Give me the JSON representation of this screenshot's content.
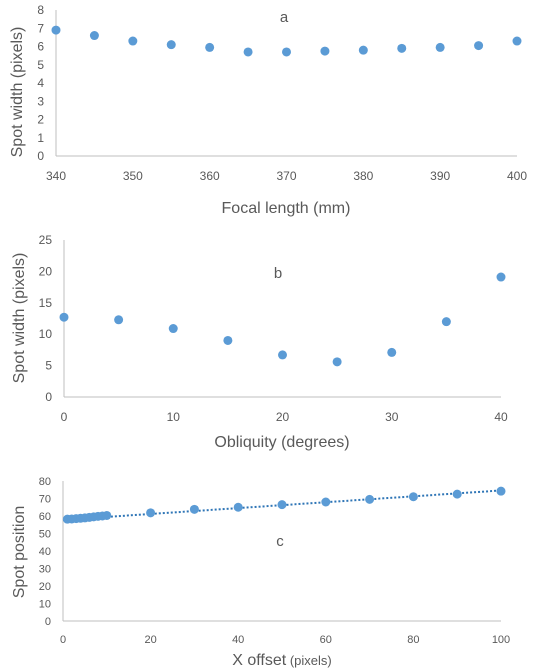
{
  "chart_data": [
    {
      "type": "scatter",
      "panel_label": "a",
      "xlabel": "Focal length (mm)",
      "ylabel": "Spot width (pixels)",
      "xlim": [
        340,
        400
      ],
      "ylim": [
        0,
        8
      ],
      "xticks": [
        340,
        350,
        360,
        370,
        380,
        390,
        400
      ],
      "yticks": [
        0,
        1,
        2,
        3,
        4,
        5,
        6,
        7,
        8
      ],
      "marker_color": "#5b9bd5",
      "points": [
        [
          340,
          6.9
        ],
        [
          345,
          6.6
        ],
        [
          350,
          6.3
        ],
        [
          355,
          6.1
        ],
        [
          360,
          5.95
        ],
        [
          365,
          5.7
        ],
        [
          370,
          5.7
        ],
        [
          375,
          5.75
        ],
        [
          380,
          5.8
        ],
        [
          385,
          5.9
        ],
        [
          390,
          5.95
        ],
        [
          395,
          6.05
        ],
        [
          400,
          6.3
        ]
      ]
    },
    {
      "type": "scatter",
      "panel_label": "b",
      "xlabel": "Obliquity (degrees)",
      "ylabel": "Spot width (pixels)",
      "xlim": [
        0,
        40
      ],
      "ylim": [
        0,
        25
      ],
      "xticks": [
        0,
        10,
        20,
        30,
        40
      ],
      "yticks": [
        0,
        5,
        10,
        15,
        20,
        25
      ],
      "marker_color": "#5b9bd5",
      "points": [
        [
          0,
          12.7
        ],
        [
          5,
          12.3
        ],
        [
          10,
          10.9
        ],
        [
          15,
          9.0
        ],
        [
          20,
          6.7
        ],
        [
          25,
          5.6
        ],
        [
          30,
          7.1
        ],
        [
          35,
          12.0
        ],
        [
          40,
          19.1
        ]
      ]
    },
    {
      "type": "scatter",
      "panel_label": "c",
      "xlabel": "X offset",
      "xlabel_unit": "(pixels)",
      "ylabel": "Spot position",
      "xlim": [
        0,
        100
      ],
      "ylim": [
        0,
        80
      ],
      "xticks": [
        0,
        20,
        40,
        60,
        80,
        100
      ],
      "yticks": [
        0,
        10,
        20,
        30,
        40,
        50,
        60,
        70,
        80
      ],
      "marker_color": "#5b9bd5",
      "trendline": {
        "style": "dotted",
        "color": "#2e75b6",
        "x": [
          0,
          100
        ],
        "y": [
          57.8,
          74.6
        ]
      },
      "points": [
        [
          1,
          58.2
        ],
        [
          2,
          58.3
        ],
        [
          3,
          58.5
        ],
        [
          4,
          58.7
        ],
        [
          5,
          58.9
        ],
        [
          6,
          59.2
        ],
        [
          7,
          59.5
        ],
        [
          8,
          59.8
        ],
        [
          9,
          60.0
        ],
        [
          10,
          60.3
        ],
        [
          20,
          61.8
        ],
        [
          30,
          63.8
        ],
        [
          40,
          65.0
        ],
        [
          50,
          66.5
        ],
        [
          60,
          68.0
        ],
        [
          70,
          69.5
        ],
        [
          80,
          71.0
        ],
        [
          90,
          72.5
        ],
        [
          100,
          74.2
        ]
      ]
    }
  ]
}
